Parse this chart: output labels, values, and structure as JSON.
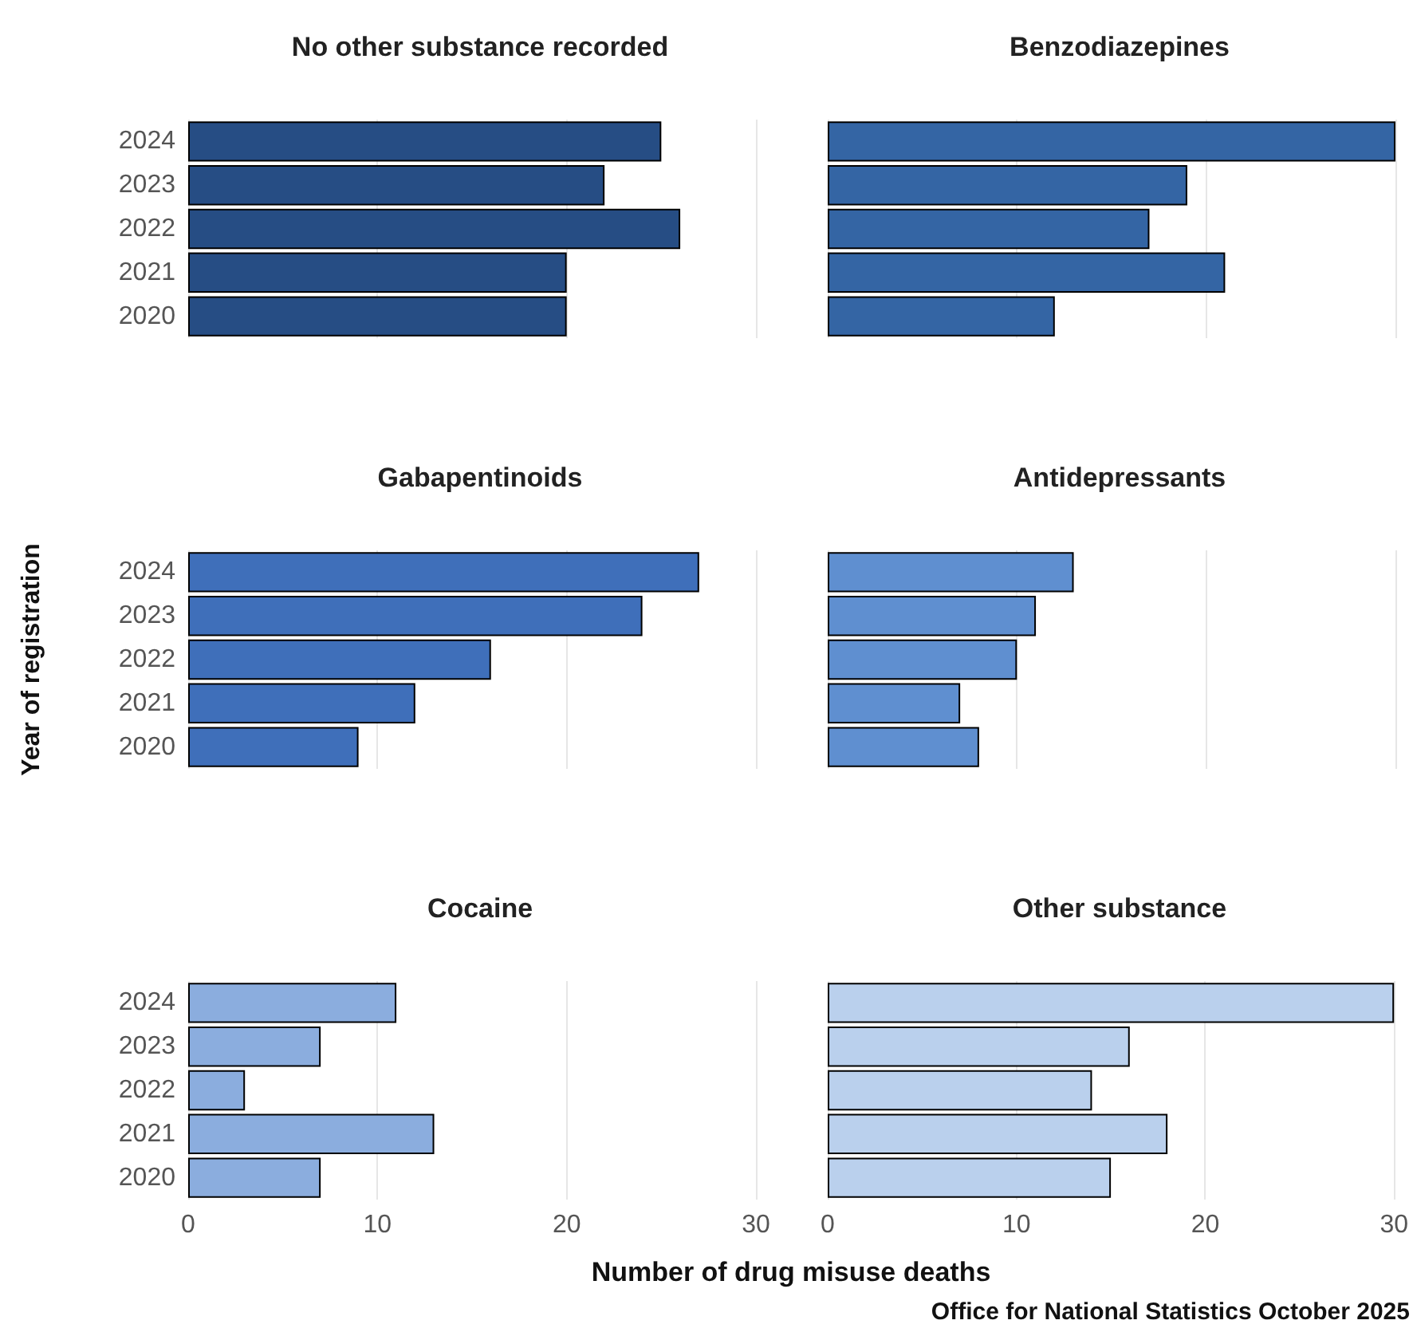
{
  "chart_data": [
    {
      "type": "bar",
      "orientation": "horizontal",
      "title": "No other substance recorded",
      "categories": [
        "2024",
        "2023",
        "2022",
        "2021",
        "2020"
      ],
      "values": [
        25,
        22,
        26,
        20,
        20
      ],
      "color": "#264d84",
      "xlim": [
        0,
        30
      ],
      "xticks": [
        0,
        10,
        20,
        30
      ],
      "grid": "x",
      "tick_labels": "y"
    },
    {
      "type": "bar",
      "orientation": "horizontal",
      "title": "Benzodiazepines",
      "categories": [
        "2024",
        "2023",
        "2022",
        "2021",
        "2020"
      ],
      "values": [
        30,
        19,
        17,
        21,
        12
      ],
      "color": "#3465a4",
      "xlim": [
        0,
        30
      ],
      "xticks": [
        0,
        10,
        20,
        30
      ],
      "grid": "x",
      "tick_labels": false
    },
    {
      "type": "bar",
      "orientation": "horizontal",
      "title": "Gabapentinoids",
      "ylabel": "Year of registration",
      "categories": [
        "2024",
        "2023",
        "2022",
        "2021",
        "2020"
      ],
      "values": [
        27,
        24,
        16,
        12,
        9
      ],
      "color": "#3f6fba",
      "xlim": [
        0,
        30
      ],
      "xticks": [
        0,
        10,
        20,
        30
      ],
      "grid": "x",
      "tick_labels": "y"
    },
    {
      "type": "bar",
      "orientation": "horizontal",
      "title": "Antidepressants",
      "categories": [
        "2024",
        "2023",
        "2022",
        "2021",
        "2020"
      ],
      "values": [
        13,
        11,
        10,
        7,
        8
      ],
      "color": "#5f8fd0",
      "xlim": [
        0,
        30
      ],
      "xticks": [
        0,
        10,
        20,
        30
      ],
      "grid": "x",
      "tick_labels": false
    },
    {
      "type": "bar",
      "orientation": "horizontal",
      "title": "Cocaine",
      "xlabel": "Number of drug misuse deaths",
      "categories": [
        "2024",
        "2023",
        "2022",
        "2021",
        "2020"
      ],
      "values": [
        11,
        7,
        3,
        13,
        7
      ],
      "color": "#8badde",
      "xlim": [
        0,
        30
      ],
      "xticks": [
        0,
        10,
        20,
        30
      ],
      "grid": "x"
    },
    {
      "type": "bar",
      "orientation": "horizontal",
      "title": "Other substance",
      "annotations": [
        "Office for National Statistics October 2025"
      ],
      "categories": [
        "2024",
        "2023",
        "2022",
        "2021",
        "2020"
      ],
      "values": [
        30,
        16,
        14,
        18,
        15
      ],
      "color": "#bad0ed",
      "xlim": [
        0,
        30
      ],
      "xticks": [
        0,
        10,
        20,
        30
      ],
      "grid": "x",
      "tick_labels": "x"
    }
  ]
}
